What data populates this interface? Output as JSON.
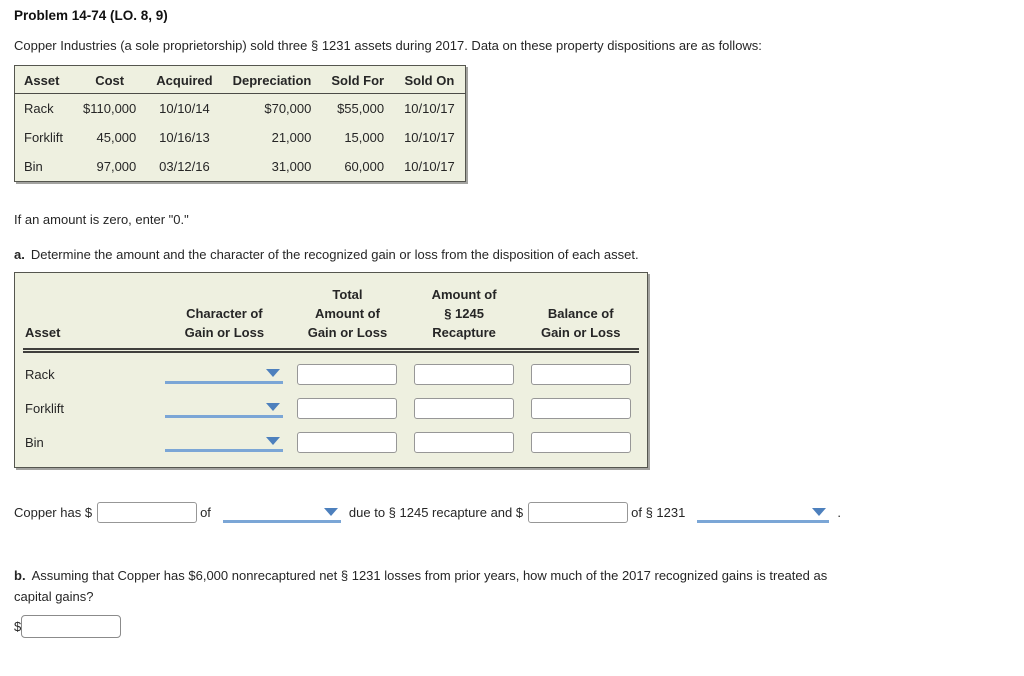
{
  "page": {
    "title": "Problem 14-74 (LO. 8, 9)",
    "intro": "Copper Industries (a sole proprietorship) sold three § 1231 assets during 2017. Data on these property dispositions are as follows:",
    "zero_note": "If an amount is zero, enter \"0.\"",
    "part_a": {
      "label": "a.",
      "text": "Determine the amount and the character of the recognized gain or loss from the disposition of each asset."
    },
    "part_b": {
      "label": "b.",
      "text": "Assuming that Copper has $6,000 nonrecaptured net § 1231 losses from prior years, how much of the 2017 recognized gains is treated as capital gains?",
      "currency_prefix": "$",
      "answer_value": ""
    }
  },
  "facts_table": {
    "columns": [
      "Asset",
      "Cost",
      "Acquired",
      "Depreciation",
      "Sold For",
      "Sold On"
    ],
    "rows": [
      [
        "Rack",
        "$110,000",
        "10/10/14",
        "$70,000",
        "$55,000",
        "10/10/17"
      ],
      [
        "Forklift",
        "45,000",
        "10/16/13",
        "21,000",
        "15,000",
        "10/10/17"
      ],
      [
        "Bin",
        "97,000",
        "03/12/16",
        "31,000",
        "60,000",
        "10/10/17"
      ]
    ]
  },
  "answer_table": {
    "headers": {
      "asset": [
        "Asset"
      ],
      "character": [
        "Character of",
        "Gain or Loss"
      ],
      "total": [
        "Total",
        "Amount of",
        "Gain or Loss"
      ],
      "recapture": [
        "Amount of",
        "§ 1245",
        "Recapture"
      ],
      "balance": [
        "Balance of",
        "Gain or Loss"
      ]
    },
    "rows": [
      {
        "asset": "Rack",
        "character_value": "",
        "total_value": "",
        "recapture_value": "",
        "balance_value": ""
      },
      {
        "asset": "Forklift",
        "character_value": "",
        "total_value": "",
        "recapture_value": "",
        "balance_value": ""
      },
      {
        "asset": "Bin",
        "character_value": "",
        "total_value": "",
        "recapture_value": "",
        "balance_value": ""
      }
    ]
  },
  "sentence": {
    "lead": "Copper has $",
    "amount1_value": "",
    "of1": "of",
    "dropdown1_value": "",
    "middle": "due to § 1245 recapture and $",
    "amount2_value": "",
    "of2": "of § 1231",
    "dropdown2_value": "",
    "period": "."
  },
  "colors": {
    "table_background": "#eef0e0",
    "table_border": "#55564f",
    "dropdown_line": "#7ba6d6",
    "dropdown_arrow": "#4d80bd",
    "input_border": "#979797",
    "text": "#262626"
  }
}
